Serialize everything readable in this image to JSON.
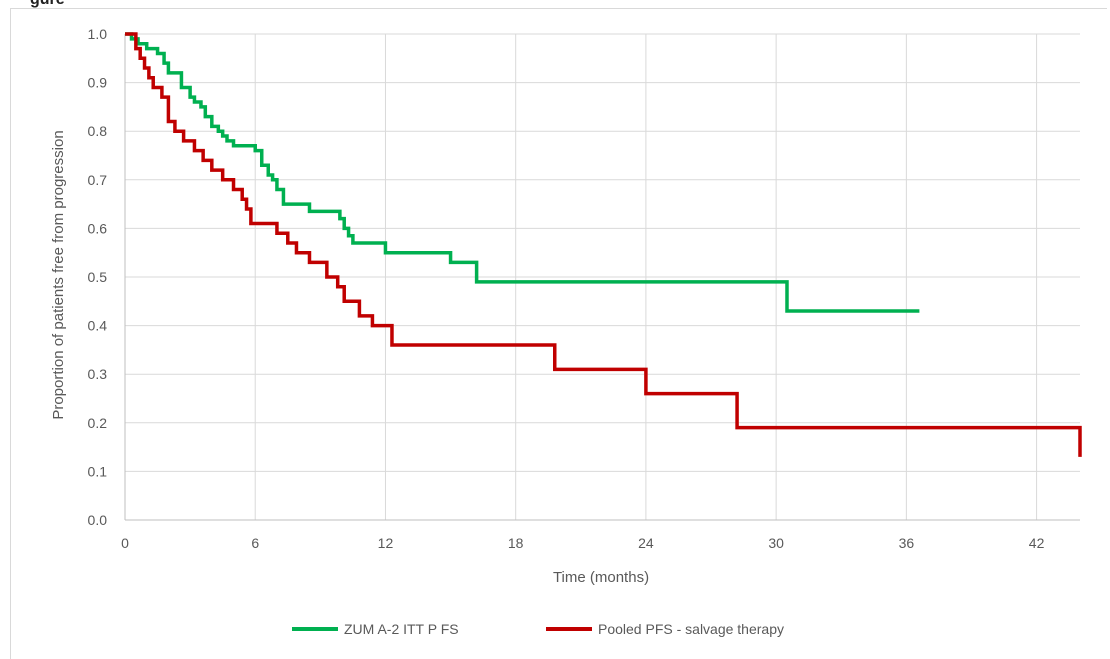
{
  "chart_data": {
    "type": "line",
    "title": "gure",
    "xlabel": "Time (months)",
    "ylabel": "Proportion of patients free from progression",
    "xlim": [
      0,
      44
    ],
    "ylim": [
      0,
      1.0
    ],
    "x_ticks": [
      0,
      6,
      12,
      18,
      24,
      30,
      36,
      42
    ],
    "y_ticks": [
      0.0,
      0.1,
      0.2,
      0.3,
      0.4,
      0.5,
      0.6,
      0.7,
      0.8,
      0.9,
      1.0
    ],
    "grid": true,
    "legend_position": "bottom",
    "step": true,
    "series": [
      {
        "name": "ZUMA-2 ITT PFS",
        "color": "#00b050",
        "x": [
          0,
          0.3,
          0.6,
          1.0,
          1.5,
          1.8,
          2.0,
          2.6,
          3.0,
          3.2,
          3.5,
          3.7,
          4.0,
          4.3,
          4.5,
          4.7,
          5.0,
          6.0,
          6.3,
          6.6,
          6.8,
          7.0,
          7.3,
          8.5,
          9.9,
          10.1,
          10.3,
          10.5,
          12.0,
          15.0,
          16.2,
          30.5,
          36.6
        ],
        "y": [
          1.0,
          0.99,
          0.98,
          0.97,
          0.96,
          0.94,
          0.92,
          0.89,
          0.87,
          0.86,
          0.85,
          0.83,
          0.81,
          0.8,
          0.79,
          0.78,
          0.77,
          0.76,
          0.73,
          0.71,
          0.7,
          0.68,
          0.65,
          0.635,
          0.62,
          0.6,
          0.585,
          0.57,
          0.55,
          0.53,
          0.49,
          0.43,
          0.43
        ]
      },
      {
        "name": "Pooled PFS - salvage therapy",
        "color": "#c00000",
        "x": [
          0,
          0.5,
          0.7,
          0.9,
          1.1,
          1.3,
          1.7,
          2.0,
          2.3,
          2.7,
          3.2,
          3.6,
          4.0,
          4.5,
          5.0,
          5.4,
          5.6,
          5.8,
          7.0,
          7.5,
          7.9,
          8.5,
          9.3,
          9.8,
          10.1,
          10.8,
          11.4,
          12.3,
          19.8,
          24.0,
          28.2,
          44.0
        ],
        "y": [
          1.0,
          0.97,
          0.95,
          0.93,
          0.91,
          0.89,
          0.87,
          0.82,
          0.8,
          0.78,
          0.76,
          0.74,
          0.72,
          0.7,
          0.68,
          0.66,
          0.64,
          0.61,
          0.59,
          0.57,
          0.55,
          0.53,
          0.5,
          0.48,
          0.45,
          0.42,
          0.4,
          0.36,
          0.31,
          0.26,
          0.19,
          0.13
        ]
      }
    ]
  },
  "legend": {
    "item_1": "ZUM A-2 ITT P FS",
    "item_2": "Pooled PFS - salvage therapy"
  }
}
